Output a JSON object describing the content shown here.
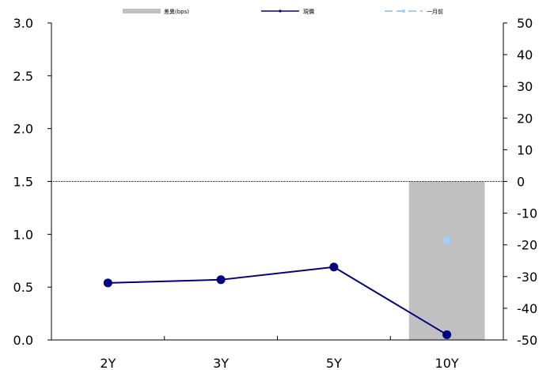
{
  "chart_data": {
    "type": "bar",
    "categories": [
      "2Y",
      "3Y",
      "5Y",
      "10Y"
    ],
    "series": [
      {
        "name": "差異(bps)",
        "type": "bar",
        "axis": "right",
        "values": [
          0,
          0,
          0,
          -50
        ],
        "color": "#c0c0c0"
      },
      {
        "name": "現價",
        "type": "line",
        "axis": "left",
        "values": [
          0.54,
          0.57,
          0.69,
          0.05
        ],
        "color": "#000080"
      },
      {
        "name": "一月前",
        "type": "line",
        "axis": "left",
        "style": "dashed",
        "values": [
          null,
          null,
          null,
          0.94
        ],
        "color": "#a6cdf2"
      }
    ],
    "left_axis": {
      "ylim": [
        0.0,
        3.0
      ],
      "ticks": [
        "0.0",
        "0.5",
        "1.0",
        "1.5",
        "2.0",
        "2.5",
        "3.0"
      ]
    },
    "right_axis": {
      "ylim": [
        -50,
        50
      ],
      "ticks": [
        "-50",
        "-40",
        "-30",
        "-20",
        "-10",
        "0",
        "10",
        "20",
        "30",
        "40",
        "50"
      ]
    },
    "grid": false,
    "legend_position": "top"
  }
}
